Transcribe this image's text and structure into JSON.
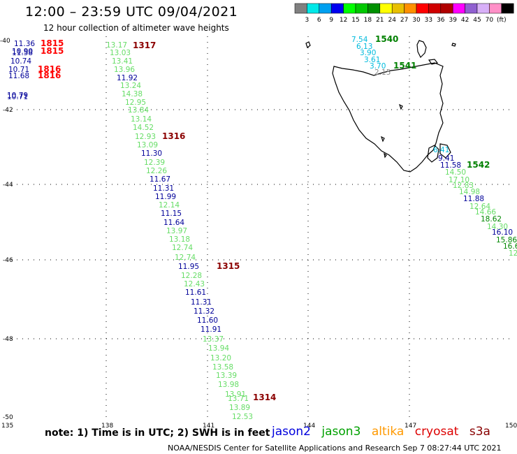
{
  "header": {
    "title": "12:00 – 23:59 UTC 09/04/2021",
    "subtitle": "12 hour collection of altimeter wave heights"
  },
  "colorbar": {
    "colors": [
      "#808080",
      "#00e8e8",
      "#00a0f0",
      "#0000f0",
      "#00ff00",
      "#00c800",
      "#009000",
      "#ffff00",
      "#e8c000",
      "#ff9000",
      "#ff0000",
      "#d00000",
      "#b00000",
      "#ff00ff",
      "#9060d0",
      "#d8b0f8",
      "#ff90c8",
      "#000000"
    ],
    "labels": [
      "3",
      "6",
      "9",
      "12",
      "15",
      "18",
      "21",
      "24",
      "27",
      "30",
      "33",
      "36",
      "39",
      "42",
      "45",
      "70",
      "(ft)"
    ]
  },
  "axes": {
    "lon_labels": [
      "135",
      "138",
      "141",
      "144",
      "147",
      "150"
    ],
    "lat_labels": [
      "-40",
      "-42",
      "-44",
      "-46",
      "-48",
      "-50"
    ]
  },
  "passes": [
    {
      "id": "1317",
      "color": "#8b0000"
    },
    {
      "id": "1316",
      "color": "#8b0000"
    },
    {
      "id": "1315",
      "color": "#8b0000"
    },
    {
      "id": "1314",
      "color": "#8b0000"
    },
    {
      "id": "1815",
      "color": "#ff0000"
    },
    {
      "id": "1815",
      "color": "#ff0000"
    },
    {
      "id": "1816",
      "color": "#ff0000"
    },
    {
      "id": "1816",
      "color": "#ff0000"
    },
    {
      "id": "1540",
      "color": "#008000"
    },
    {
      "id": "1541",
      "color": "#008000"
    },
    {
      "id": "1542",
      "color": "#008000"
    }
  ],
  "measurements": [
    {
      "v": "13.17",
      "c": "#66dd66"
    },
    {
      "v": "13.03",
      "c": "#66dd66"
    },
    {
      "v": "13.41",
      "c": "#66dd66"
    },
    {
      "v": "13.96",
      "c": "#66dd66"
    },
    {
      "v": "11.92",
      "c": "#000099"
    },
    {
      "v": "13.24",
      "c": "#66dd66"
    },
    {
      "v": "14.38",
      "c": "#66dd66"
    },
    {
      "v": "12.95",
      "c": "#66dd66"
    },
    {
      "v": "13.84",
      "c": "#66dd66"
    },
    {
      "v": "13.14",
      "c": "#66dd66"
    },
    {
      "v": "14.52",
      "c": "#66dd66"
    },
    {
      "v": "12.93",
      "c": "#66dd66"
    },
    {
      "v": "13.09",
      "c": "#66dd66"
    },
    {
      "v": "11.30",
      "c": "#000099"
    },
    {
      "v": "12.39",
      "c": "#66dd66"
    },
    {
      "v": "12.26",
      "c": "#66dd66"
    },
    {
      "v": "11.67",
      "c": "#000099"
    },
    {
      "v": "11.31",
      "c": "#000099"
    },
    {
      "v": "11.99",
      "c": "#000099"
    },
    {
      "v": "12.14",
      "c": "#66dd66"
    },
    {
      "v": "11.15",
      "c": "#000099"
    },
    {
      "v": "11.64",
      "c": "#000099"
    },
    {
      "v": "13.97",
      "c": "#66dd66"
    },
    {
      "v": "13.18",
      "c": "#66dd66"
    },
    {
      "v": "12.74",
      "c": "#66dd66"
    },
    {
      "v": "12.74",
      "c": "#66dd66"
    },
    {
      "v": "11.95",
      "c": "#000099"
    },
    {
      "v": "12.28",
      "c": "#66dd66"
    },
    {
      "v": "12.43",
      "c": "#66dd66"
    },
    {
      "v": "11.61",
      "c": "#000099"
    },
    {
      "v": "11.31",
      "c": "#000099"
    },
    {
      "v": "11.32",
      "c": "#000099"
    },
    {
      "v": "11.60",
      "c": "#000099"
    },
    {
      "v": "11.91",
      "c": "#000099"
    },
    {
      "v": "13.37",
      "c": "#66dd66"
    },
    {
      "v": "13.94",
      "c": "#66dd66"
    },
    {
      "v": "13.20",
      "c": "#66dd66"
    },
    {
      "v": "13.58",
      "c": "#66dd66"
    },
    {
      "v": "13.39",
      "c": "#66dd66"
    },
    {
      "v": "13.98",
      "c": "#66dd66"
    },
    {
      "v": "13.91",
      "c": "#66dd66"
    },
    {
      "v": "13.71",
      "c": "#66dd66"
    },
    {
      "v": "13.89",
      "c": "#66dd66"
    },
    {
      "v": "12.53",
      "c": "#66dd66"
    },
    {
      "v": "11.36",
      "c": "#000099"
    },
    {
      "v": "10.90",
      "c": "#000099"
    },
    {
      "v": "11.58",
      "c": "#000099"
    },
    {
      "v": "10.74",
      "c": "#000099"
    },
    {
      "v": "10.71",
      "c": "#000099"
    },
    {
      "v": "11.68",
      "c": "#000099"
    },
    {
      "v": "10.79",
      "c": "#000099"
    },
    {
      "v": "10.71",
      "c": "#000099"
    },
    {
      "v": "7.54",
      "c": "#00bbdd"
    },
    {
      "v": "6.13",
      "c": "#00bbdd"
    },
    {
      "v": "3.90",
      "c": "#00bbdd"
    },
    {
      "v": "3.61",
      "c": "#00bbdd"
    },
    {
      "v": "3.70",
      "c": "#00bbdd"
    },
    {
      "v": "2.15",
      "c": "#888888"
    },
    {
      "v": "6.41",
      "c": "#00bbdd"
    },
    {
      "v": "9.41",
      "c": "#000099"
    },
    {
      "v": "11.58",
      "c": "#000099"
    },
    {
      "v": "14.50",
      "c": "#66dd66"
    },
    {
      "v": "17.10",
      "c": "#66dd66"
    },
    {
      "v": "12.83",
      "c": "#66dd66"
    },
    {
      "v": "14.98",
      "c": "#66dd66"
    },
    {
      "v": "11.88",
      "c": "#000099"
    },
    {
      "v": "12.64",
      "c": "#66dd66"
    },
    {
      "v": "14.66",
      "c": "#66dd66"
    },
    {
      "v": "18.62",
      "c": "#008800"
    },
    {
      "v": "14.30",
      "c": "#66dd66"
    },
    {
      "v": "16.10",
      "c": "#000099"
    },
    {
      "v": "15.86",
      "c": "#008800"
    },
    {
      "v": "16.6",
      "c": "#008800"
    },
    {
      "v": "12",
      "c": "#66dd66"
    }
  ],
  "note": "note:  1) Time is in UTC;  2) SWH is in feet",
  "satellites": [
    {
      "name": "jason2",
      "color": "#0000dd"
    },
    {
      "name": "jason3",
      "color": "#00a000"
    },
    {
      "name": "altika",
      "color": "#ff9900"
    },
    {
      "name": "cryosat",
      "color": "#dd0000"
    },
    {
      "name": "s3a",
      "color": "#880000"
    }
  ],
  "credit": "NOAA/NESDIS Center for Satellite Applications and Research   Sep  7 08:27:44 UTC 2021"
}
